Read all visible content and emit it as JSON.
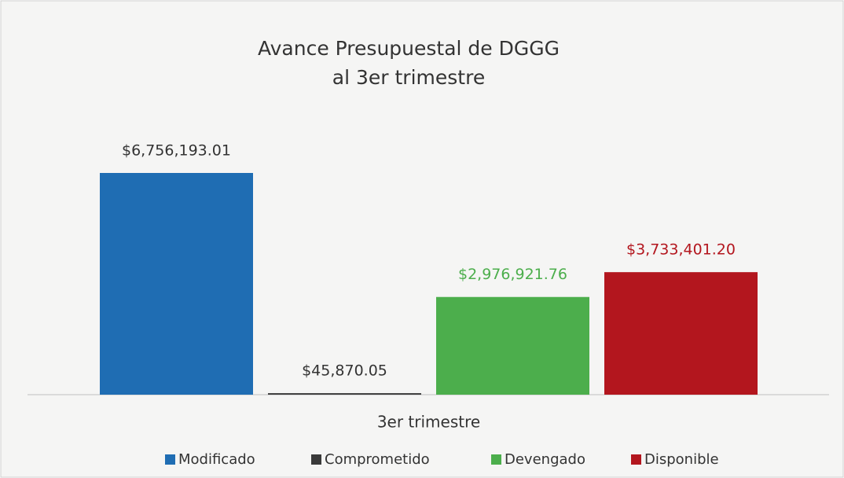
{
  "chart_data": {
    "type": "bar",
    "title": [
      "Avance Presupuestal de DGGG",
      "al 3er trimestre"
    ],
    "categories": [
      "3er trimestre"
    ],
    "series": [
      {
        "name": "Modificado",
        "color": "#1f6db3",
        "label_color": "#333333",
        "values": [
          6756193.01
        ],
        "value_labels": [
          "$6,756,193.01"
        ]
      },
      {
        "name": "Comprometido",
        "color": "#3a3a3a",
        "label_color": "#333333",
        "values": [
          45870.05
        ],
        "value_labels": [
          "$45,870.05"
        ]
      },
      {
        "name": "Devengado",
        "color": "#4cae4c",
        "label_color": "#4cae4c",
        "values": [
          2976921.76
        ],
        "value_labels": [
          "$2,976,921.76"
        ]
      },
      {
        "name": "Disponible",
        "color": "#b3161e",
        "label_color": "#b3161e",
        "values": [
          3733401.2
        ],
        "value_labels": [
          "$3,733,401.20"
        ]
      }
    ]
  }
}
